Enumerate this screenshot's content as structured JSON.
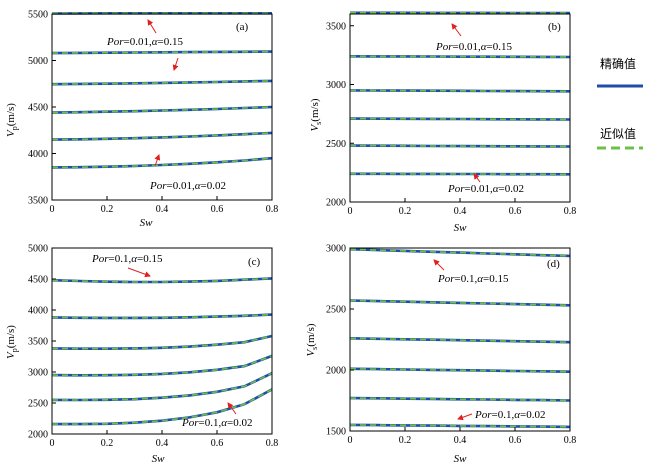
{
  "legend": {
    "items": [
      {
        "label": "精确值",
        "color": "#1f4ea8",
        "style": "solid"
      },
      {
        "label": "近似值",
        "color": "#6cc04a",
        "style": "dashed"
      }
    ]
  },
  "chart_data": [
    {
      "type": "line",
      "panel": "(a)",
      "xlabel": "Sw",
      "ylabel": "Vp(m/s)",
      "xlim": [
        0,
        0.8
      ],
      "ylim": [
        3500,
        5500
      ],
      "xticks": [
        "0",
        "0.2",
        "0.4",
        "0.6",
        "0.8"
      ],
      "yticks": [
        "3500",
        "4000",
        "4500",
        "5000",
        "5500"
      ],
      "x": [
        0,
        0.1,
        0.2,
        0.3,
        0.4,
        0.5,
        0.6,
        0.7,
        0.8
      ],
      "series": [
        {
          "values": [
            5505,
            5506,
            5507,
            5507,
            5507,
            5507,
            5508,
            5508,
            5508
          ]
        },
        {
          "values": [
            5080,
            5082,
            5084,
            5086,
            5088,
            5090,
            5092,
            5094,
            5096
          ]
        },
        {
          "values": [
            4745,
            4748,
            4751,
            4755,
            4759,
            4764,
            4769,
            4775,
            4781
          ]
        },
        {
          "values": [
            4440,
            4444,
            4449,
            4455,
            4462,
            4470,
            4479,
            4489,
            4500
          ]
        },
        {
          "values": [
            4150,
            4153,
            4158,
            4165,
            4173,
            4183,
            4195,
            4208,
            4222
          ]
        },
        {
          "values": [
            3850,
            3853,
            3858,
            3866,
            3876,
            3889,
            3905,
            3925,
            3950
          ]
        }
      ],
      "annotations": [
        {
          "text_a": "Por",
          "text_b": "=0.01,",
          "text_c": "α",
          "text_d": "=0.15"
        },
        {
          "text_a": "Por",
          "text_b": "=0.01,",
          "text_c": "α",
          "text_d": "=0.02"
        }
      ]
    },
    {
      "type": "line",
      "panel": "(b)",
      "xlabel": "Sw",
      "ylabel": "Vs(m/s)",
      "xlim": [
        0,
        0.8
      ],
      "ylim": [
        2000,
        3600
      ],
      "xticks": [
        "0",
        "0.2",
        "0.4",
        "0.6",
        "0.8"
      ],
      "yticks": [
        "2000",
        "2500",
        "3000",
        "3500"
      ],
      "x": [
        0,
        0.1,
        0.2,
        0.3,
        0.4,
        0.5,
        0.6,
        0.7,
        0.8
      ],
      "series": [
        {
          "values": [
            3610,
            3610,
            3610,
            3609,
            3609,
            3609,
            3608,
            3608,
            3608
          ]
        },
        {
          "values": [
            3240,
            3239,
            3239,
            3238,
            3237,
            3237,
            3236,
            3235,
            3234
          ]
        },
        {
          "values": [
            2950,
            2949,
            2948,
            2947,
            2946,
            2945,
            2944,
            2943,
            2942
          ]
        },
        {
          "values": [
            2710,
            2709,
            2708,
            2707,
            2706,
            2705,
            2704,
            2703,
            2702
          ]
        },
        {
          "values": [
            2480,
            2479,
            2478,
            2477,
            2476,
            2475,
            2474,
            2473,
            2472
          ]
        },
        {
          "values": [
            2240,
            2240,
            2239,
            2239,
            2238,
            2238,
            2237,
            2237,
            2236
          ]
        }
      ],
      "annotations": [
        {
          "text_a": "Por",
          "text_b": "=0.01,",
          "text_c": "α",
          "text_d": "=0.15"
        },
        {
          "text_a": "Por",
          "text_b": "=0.01,",
          "text_c": "α",
          "text_d": "=0.02"
        }
      ]
    },
    {
      "type": "line",
      "panel": "(c)",
      "xlabel": "Sw",
      "ylabel": "Vp(m/s)",
      "xlim": [
        0,
        0.8
      ],
      "ylim": [
        2000,
        5000
      ],
      "xticks": [
        "0",
        "0.2",
        "0.4",
        "0.6",
        "0.8"
      ],
      "yticks": [
        "2000",
        "2500",
        "3000",
        "3500",
        "4000",
        "4500",
        "5000"
      ],
      "x": [
        0,
        0.1,
        0.2,
        0.3,
        0.4,
        0.5,
        0.6,
        0.7,
        0.8
      ],
      "series": [
        {
          "values": [
            4480,
            4468,
            4457,
            4451,
            4452,
            4458,
            4470,
            4488,
            4510
          ]
        },
        {
          "values": [
            3880,
            3875,
            3872,
            3872,
            3875,
            3882,
            3893,
            3907,
            3925
          ]
        },
        {
          "values": [
            3380,
            3376,
            3376,
            3380,
            3391,
            3410,
            3440,
            3480,
            3580
          ]
        },
        {
          "values": [
            2950,
            2947,
            2948,
            2955,
            2970,
            2995,
            3035,
            3095,
            3260
          ]
        },
        {
          "values": [
            2550,
            2548,
            2551,
            2562,
            2585,
            2622,
            2680,
            2770,
            2980
          ]
        },
        {
          "values": [
            2160,
            2159,
            2165,
            2182,
            2215,
            2268,
            2350,
            2480,
            2720
          ]
        }
      ],
      "annotations": [
        {
          "text_a": "Por",
          "text_b": "=0.1,",
          "text_c": "α",
          "text_d": "=0.15"
        },
        {
          "text_a": "Por",
          "text_b": "=0.1,",
          "text_c": "α",
          "text_d": "=0.02"
        }
      ]
    },
    {
      "type": "line",
      "panel": "(d)",
      "xlabel": "Sw",
      "ylabel": "Vs(m/s)",
      "xlim": [
        0,
        0.8
      ],
      "ylim": [
        1500,
        3000
      ],
      "xticks": [
        "0",
        "0.2",
        "0.4",
        "0.6",
        "0.8"
      ],
      "yticks": [
        "1500",
        "2000",
        "2500",
        "3000"
      ],
      "x": [
        0,
        0.1,
        0.2,
        0.3,
        0.4,
        0.5,
        0.6,
        0.7,
        0.8
      ],
      "series": [
        {
          "values": [
            2990,
            2983,
            2976,
            2969,
            2962,
            2955,
            2948,
            2941,
            2935
          ]
        },
        {
          "values": [
            2570,
            2565,
            2560,
            2555,
            2550,
            2545,
            2540,
            2535,
            2530
          ]
        },
        {
          "values": [
            2260,
            2256,
            2252,
            2248,
            2244,
            2240,
            2236,
            2232,
            2228
          ]
        },
        {
          "values": [
            2010,
            2007,
            2004,
            2001,
            1998,
            1995,
            1992,
            1989,
            1986
          ]
        },
        {
          "values": [
            1770,
            1768,
            1765,
            1763,
            1760,
            1758,
            1755,
            1753,
            1750
          ]
        },
        {
          "values": [
            1550,
            1548,
            1546,
            1544,
            1542,
            1540,
            1538,
            1536,
            1534
          ]
        }
      ],
      "annotations": [
        {
          "text_a": "Por",
          "text_b": "=0.1,",
          "text_c": "α",
          "text_d": "=0.15"
        },
        {
          "text_a": "Por",
          "text_b": "=0.1,",
          "text_c": "α",
          "text_d": "=0.02"
        }
      ]
    }
  ]
}
